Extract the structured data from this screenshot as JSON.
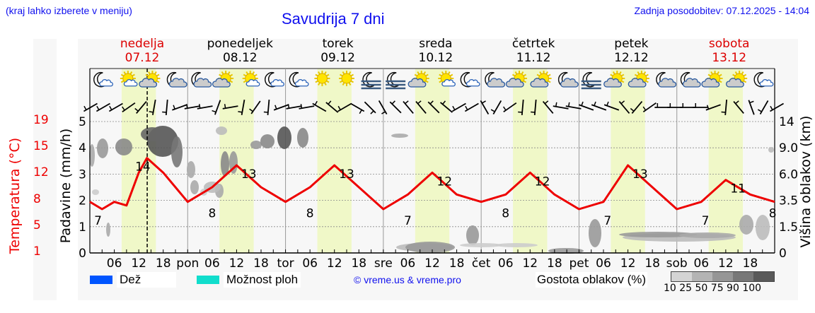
{
  "header": {
    "note": "(kraj lahko izberete v meniju)",
    "title": "Savudrija 7 dni",
    "updated": "Zadnja posodobitev: 07.12.2025 - 14:04"
  },
  "days": [
    {
      "name": "nedelja",
      "date": "07.12",
      "weekend": true,
      "short": ""
    },
    {
      "name": "ponedeljek",
      "date": "08.12",
      "weekend": false,
      "short": "pon"
    },
    {
      "name": "torek",
      "date": "09.12",
      "weekend": false,
      "short": "tor"
    },
    {
      "name": "sreda",
      "date": "10.12",
      "weekend": false,
      "short": "sre"
    },
    {
      "name": "četrtek",
      "date": "11.12",
      "weekend": false,
      "short": "čet"
    },
    {
      "name": "petek",
      "date": "12.12",
      "weekend": false,
      "short": "pet"
    },
    {
      "name": "sobota",
      "date": "13.12",
      "weekend": true,
      "short": "sob"
    }
  ],
  "weather_icons": [
    "moon-small-cloud",
    "sun-small-cloud",
    "sun-cloud",
    "moon-cloud",
    "moon-cloud",
    "sun-cloud",
    "sun-small-cloud",
    "moon-small-cloud",
    "moon-small-cloud",
    "sun",
    "sun",
    "moon-fog",
    "moon-fog",
    "sun-cloud",
    "sun-small-cloud",
    "moon-small-cloud",
    "moon-cloud",
    "sun-cloud",
    "sun-cloud",
    "moon-cloud",
    "moon-fog",
    "sun-cloud",
    "sun-cloud",
    "moon-cloud",
    "moon-cloud",
    "sun-cloud",
    "sun-cloud",
    "moon-small-cloud"
  ],
  "axes": {
    "left_temp_label": "Temperatura (°C)",
    "left_temp_ticks": [
      "1",
      "5",
      "8",
      "12",
      "15",
      "19"
    ],
    "left_precip_label": "Padavine (mm/h)",
    "left_precip_ticks": [
      "0",
      "1",
      "2",
      "3",
      "4",
      "5"
    ],
    "right_label": "Višina oblakov (km)",
    "right_ticks": [
      "0",
      "1.5",
      "3.5",
      "6.0",
      "9.0",
      "14"
    ],
    "x_hour_labels": [
      "06",
      "12",
      "18"
    ]
  },
  "legend": {
    "rain_label": "Dež",
    "rain_color": "#0055ff",
    "showers_label": "Možnost ploh",
    "showers_color": "#11ddcc",
    "copyright": "© vreme.us & vreme.pro",
    "cloud_density_label": "Gostota oblakov (%)",
    "cloud_density_ticks": "10 25 50 75 90 100",
    "cloud_density_colors": [
      "#d4d4d4",
      "#b4b4b4",
      "#969696",
      "#787878",
      "#5a5a5a"
    ]
  },
  "colors": {
    "temperature": "#ee0000",
    "daylight": "#f0f8c8",
    "accent_text": "#1010ee",
    "weekend_text": "#dd0000"
  },
  "chart_data": {
    "type": "line",
    "title": "Savudrija 7 dni",
    "xlabel": "",
    "ylabel": "Temperatura (°C)",
    "x_unit": "hours from 07.12 00:00",
    "current_time_marker": "07.12 14:04",
    "series": [
      {
        "name": "Temperatura",
        "x": [
          0,
          3,
          6,
          9,
          12,
          14,
          18,
          24,
          30,
          36,
          42,
          48,
          54,
          60,
          66,
          72,
          78,
          84,
          90,
          96,
          102,
          108,
          114,
          120,
          126,
          132,
          138,
          144,
          150,
          156,
          162,
          168
        ],
        "values": [
          8,
          7,
          8,
          7.5,
          12,
          14,
          12,
          8,
          10,
          13,
          10,
          8,
          10,
          13,
          10,
          7,
          9,
          12,
          9,
          8,
          9,
          12,
          9,
          7,
          8,
          13,
          10,
          7,
          8,
          11,
          9,
          8
        ]
      }
    ],
    "temperature_labels": [
      {
        "day": "07.12",
        "min": 7,
        "max": 14
      },
      {
        "day": "08.12",
        "min": 8,
        "max": 13
      },
      {
        "day": "09.12",
        "min": 8,
        "max": 13
      },
      {
        "day": "10.12",
        "min": 7,
        "max": 12
      },
      {
        "day": "11.12",
        "min": 8,
        "max": 12
      },
      {
        "day": "12.12",
        "min": 7,
        "max": 13
      },
      {
        "day": "13.12",
        "min": 7,
        "max": 11
      },
      {
        "day": "end",
        "min": 8
      }
    ],
    "precipitation": "none",
    "ylim_precip": [
      0,
      5
    ],
    "ylim_temp": [
      1,
      19
    ],
    "ylim_cloud_km": [
      0,
      14
    ],
    "grid": true,
    "legend_position": "bottom"
  }
}
